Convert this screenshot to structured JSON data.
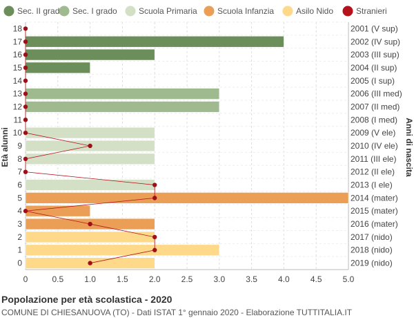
{
  "chart_data": {
    "type": "bar",
    "orientation": "horizontal",
    "ylabel": "Età alunni",
    "ylabel_right": "Anni di nascita",
    "xlim": [
      0,
      5
    ],
    "x_ticks": [
      "0",
      "0.5",
      "1.0",
      "1.5",
      "2.0",
      "2.5",
      "3.0",
      "3.5",
      "4.0",
      "4.5",
      "5.0"
    ],
    "grid": true,
    "legend_position": "top",
    "legend": [
      {
        "name": "Sec. II grado",
        "color": "#6b8e5a",
        "shape": "circle"
      },
      {
        "name": "Sec. I grado",
        "color": "#9fba8f",
        "shape": "circle"
      },
      {
        "name": "Scuola Primaria",
        "color": "#d4e0c6",
        "shape": "circle"
      },
      {
        "name": "Scuola Infanzia",
        "color": "#eb9e55",
        "shape": "circle"
      },
      {
        "name": "Asilo Nido",
        "color": "#fed98a",
        "shape": "circle"
      },
      {
        "name": "Stranieri",
        "color": "#b5121b",
        "shape": "circle"
      }
    ],
    "rows": [
      {
        "age": "18",
        "year": "2001 (V sup)",
        "value": 0,
        "stranieri": 0,
        "series": "Sec. II grado"
      },
      {
        "age": "17",
        "year": "2002 (IV sup)",
        "value": 4,
        "stranieri": 0,
        "series": "Sec. II grado"
      },
      {
        "age": "16",
        "year": "2003 (III sup)",
        "value": 2,
        "stranieri": 0,
        "series": "Sec. II grado"
      },
      {
        "age": "15",
        "year": "2004 (II sup)",
        "value": 1,
        "stranieri": 0,
        "series": "Sec. II grado"
      },
      {
        "age": "14",
        "year": "2005 (I sup)",
        "value": 0,
        "stranieri": 0,
        "series": "Sec. II grado"
      },
      {
        "age": "13",
        "year": "2006 (III med)",
        "value": 3,
        "stranieri": 0,
        "series": "Sec. I grado"
      },
      {
        "age": "12",
        "year": "2007 (II med)",
        "value": 3,
        "stranieri": 0,
        "series": "Sec. I grado"
      },
      {
        "age": "11",
        "year": "2008 (I med)",
        "value": 0,
        "stranieri": 0,
        "series": "Sec. I grado"
      },
      {
        "age": "10",
        "year": "2009 (V ele)",
        "value": 2,
        "stranieri": 0,
        "series": "Scuola Primaria"
      },
      {
        "age": "9",
        "year": "2010 (IV ele)",
        "value": 2,
        "stranieri": 1,
        "series": "Scuola Primaria"
      },
      {
        "age": "8",
        "year": "2011 (III ele)",
        "value": 2,
        "stranieri": 0,
        "series": "Scuola Primaria"
      },
      {
        "age": "7",
        "year": "2012 (II ele)",
        "value": 0,
        "stranieri": 0,
        "series": "Scuola Primaria"
      },
      {
        "age": "6",
        "year": "2013 (I ele)",
        "value": 2,
        "stranieri": 2,
        "series": "Scuola Primaria"
      },
      {
        "age": "5",
        "year": "2014 (mater)",
        "value": 5,
        "stranieri": 2,
        "series": "Scuola Infanzia"
      },
      {
        "age": "4",
        "year": "2015 (mater)",
        "value": 1,
        "stranieri": 0,
        "series": "Scuola Infanzia"
      },
      {
        "age": "3",
        "year": "2016 (mater)",
        "value": 2,
        "stranieri": 1,
        "series": "Scuola Infanzia"
      },
      {
        "age": "2",
        "year": "2017 (nido)",
        "value": 2,
        "stranieri": 2,
        "series": "Asilo Nido"
      },
      {
        "age": "1",
        "year": "2018 (nido)",
        "value": 3,
        "stranieri": 2,
        "series": "Asilo Nido"
      },
      {
        "age": "0",
        "year": "2019 (nido)",
        "value": 2,
        "stranieri": 1,
        "series": "Asilo Nido"
      }
    ]
  },
  "footer": {
    "title": "Popolazione per età scolastica - 2020",
    "subtitle": "COMUNE DI CHIESANUOVA (TO) - Dati ISTAT 1° gennaio 2020 - Elaborazione TUTTITALIA.IT"
  }
}
